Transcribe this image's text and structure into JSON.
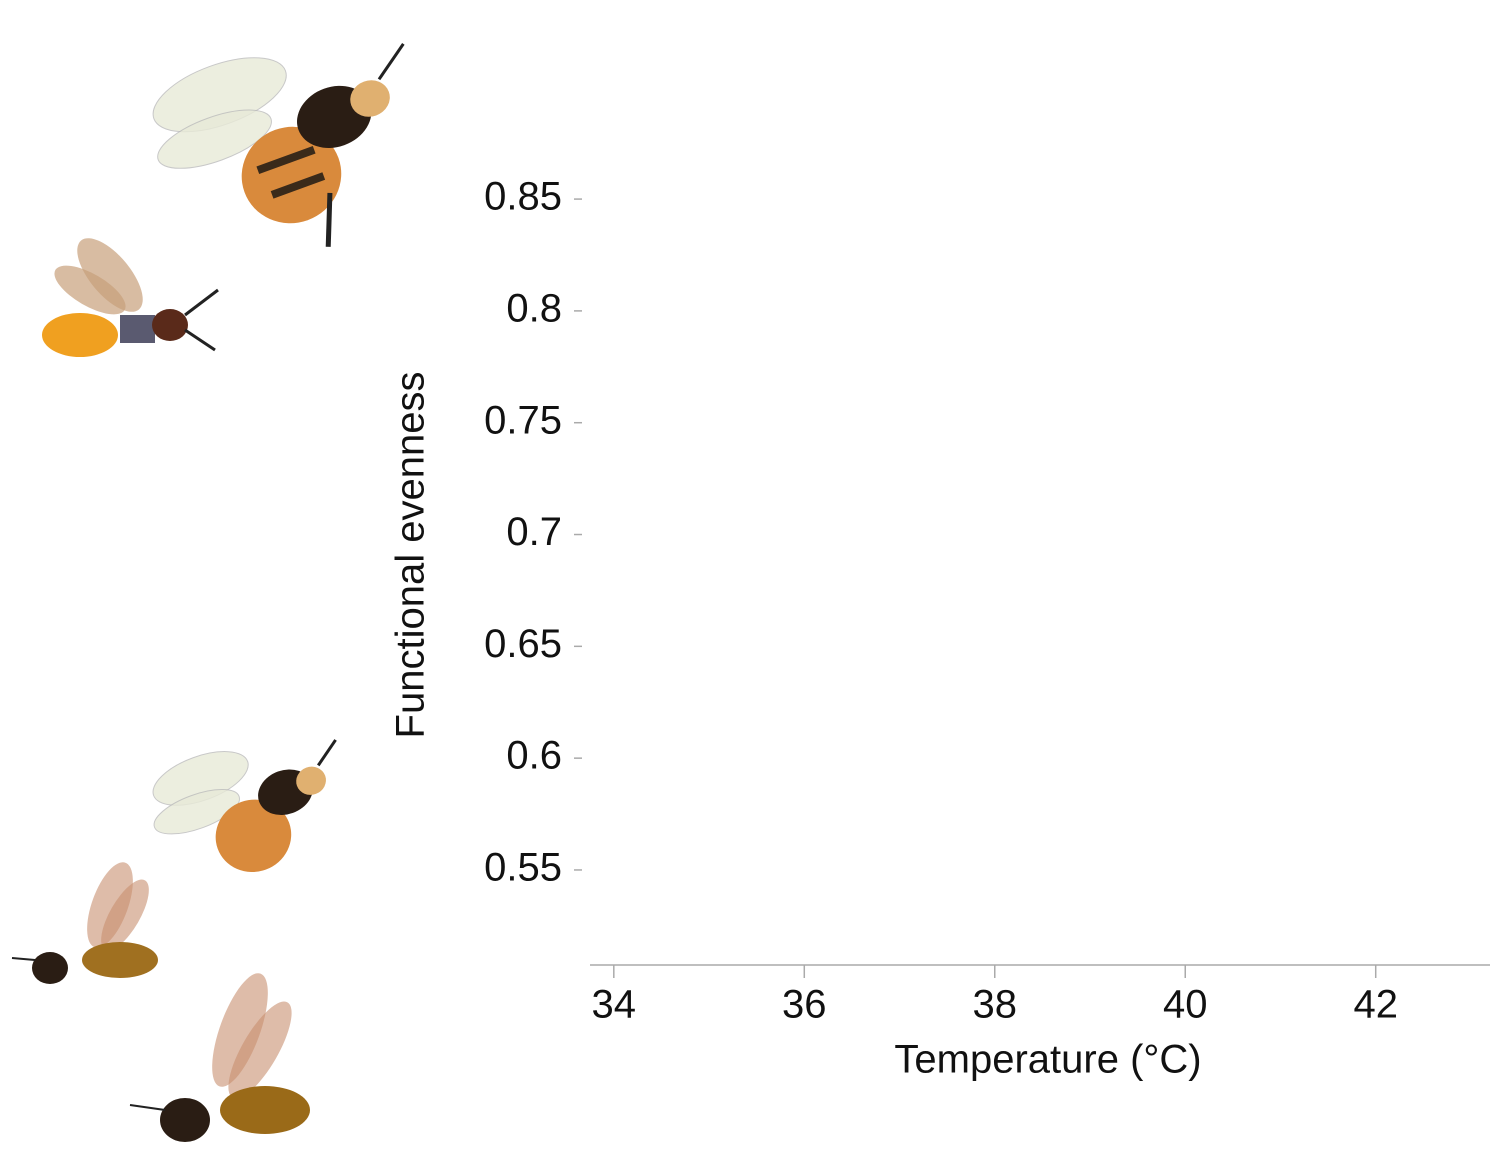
{
  "chart_data": {
    "type": "scatter",
    "xlabel": "Temperature (°C)",
    "ylabel": "Functional evenness",
    "xlim": [
      33.75,
      43.2
    ],
    "xticks": [
      34,
      36,
      38,
      40,
      42
    ],
    "ylim": [
      0.5075,
      0.88
    ],
    "yticks": [
      0.55,
      0.6,
      0.65,
      0.7,
      0.75,
      0.8,
      0.85
    ],
    "series": []
  }
}
